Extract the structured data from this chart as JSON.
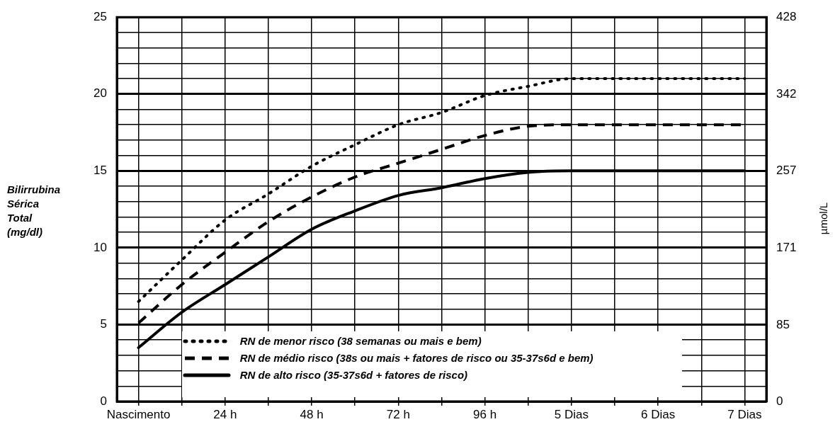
{
  "chart_data": {
    "type": "line",
    "ylabel": "Bilirrubina Sérica Total (mg/dl)",
    "y2label": "µmol/L",
    "categories": [
      "Nascimento",
      null,
      "24 h",
      null,
      "48 h",
      null,
      "72 h",
      null,
      "96 h",
      null,
      "5 Dias",
      null,
      "6 Dias",
      null,
      "7 Dias"
    ],
    "series": [
      {
        "name": "RN de menor risco (38 semanas ou mais e bem)",
        "color": "#000000",
        "line_style": "dotted",
        "values": [
          6.5,
          9.2,
          11.8,
          13.5,
          15.3,
          16.7,
          18,
          18.8,
          19.9,
          20.5,
          21,
          21,
          21,
          21,
          21
        ]
      },
      {
        "name": "RN de médio risco (38s ou mais + fatores de risco ou 35-37s6d e bem)",
        "color": "#000000",
        "line_style": "dashed",
        "values": [
          5.1,
          7.6,
          9.7,
          11.7,
          13.3,
          14.6,
          15.5,
          16.4,
          17.3,
          17.9,
          18,
          18,
          18,
          18,
          18
        ]
      },
      {
        "name": "RN de alto risco  (35-37s6d + fatores de risco)",
        "color": "#000000",
        "line_style": "solid",
        "values": [
          3.5,
          5.8,
          7.6,
          9.4,
          11.2,
          12.4,
          13.4,
          13.9,
          14.5,
          14.9,
          15,
          15,
          15,
          15,
          15
        ]
      }
    ],
    "ylim": [
      0,
      25
    ],
    "yticks": [
      0,
      {
        "value": 1,
        "label": null
      },
      {
        "value": 2,
        "label": null
      },
      {
        "value": 3,
        "label": null
      },
      {
        "value": 4,
        "label": null
      },
      5,
      {
        "value": 6,
        "label": null
      },
      {
        "value": 7,
        "label": null
      },
      {
        "value": 8,
        "label": null
      },
      {
        "value": 9,
        "label": null
      },
      10,
      {
        "value": 11,
        "label": null
      },
      {
        "value": 12,
        "label": null
      },
      {
        "value": 13,
        "label": null
      },
      {
        "value": 14,
        "label": null
      },
      15,
      {
        "value": 16,
        "label": null
      },
      {
        "value": 17,
        "label": null
      },
      {
        "value": 18,
        "label": null
      },
      {
        "value": 19,
        "label": null
      },
      20,
      {
        "value": 21,
        "label": null
      },
      {
        "value": 22,
        "label": null
      },
      {
        "value": 23,
        "label": null
      },
      {
        "value": 24,
        "label": null
      },
      25
    ],
    "y2lim": [
      0,
      428
    ],
    "y2ticks": [
      0,
      85,
      171,
      257,
      342,
      428
    ],
    "grid": true,
    "legend": "bottom",
    "marker": "none"
  }
}
